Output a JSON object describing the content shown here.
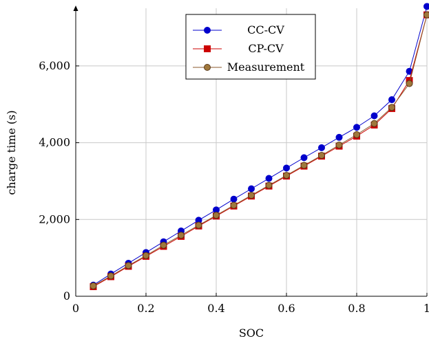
{
  "chart_data": {
    "type": "line",
    "title": "",
    "xlabel": "SOC",
    "ylabel": "charge time (s)",
    "xlim": [
      0,
      1
    ],
    "ylim": [
      0,
      7600
    ],
    "x_ticks": [
      {
        "value": 0,
        "label": "0"
      },
      {
        "value": 0.2,
        "label": "0.2"
      },
      {
        "value": 0.4,
        "label": "0.4"
      },
      {
        "value": 0.6,
        "label": "0.6"
      },
      {
        "value": 0.8,
        "label": "0.8"
      },
      {
        "value": 1,
        "label": "1"
      }
    ],
    "y_ticks": [
      {
        "value": 0,
        "label": "0"
      },
      {
        "value": 2000,
        "label": "2,000"
      },
      {
        "value": 4000,
        "label": "4,000"
      },
      {
        "value": 6000,
        "label": "6,000"
      }
    ],
    "grid": true,
    "legend": "top-center",
    "x": [
      0.05,
      0.1,
      0.15,
      0.2,
      0.25,
      0.3,
      0.35,
      0.4,
      0.45,
      0.5,
      0.55,
      0.6,
      0.65,
      0.7,
      0.75,
      0.8,
      0.85,
      0.9,
      0.95,
      1.0
    ],
    "series": [
      {
        "name": "CC-CV",
        "color": "#0000cc",
        "marker": "circle",
        "values": [
          290,
          580,
          860,
          1140,
          1420,
          1700,
          1980,
          2250,
          2530,
          2800,
          3070,
          3340,
          3610,
          3870,
          4140,
          4400,
          4700,
          5120,
          5860,
          7550
        ]
      },
      {
        "name": "CP-CV",
        "color": "#cc0000",
        "marker": "square",
        "values": [
          250,
          510,
          780,
          1040,
          1300,
          1560,
          1830,
          2090,
          2350,
          2610,
          2870,
          3130,
          3390,
          3650,
          3910,
          4170,
          4460,
          4890,
          5620,
          7330
        ]
      },
      {
        "name": "Measurement",
        "color": "#8b5a2b",
        "marker": "circle",
        "values": [
          270,
          530,
          800,
          1060,
          1330,
          1590,
          1850,
          2110,
          2370,
          2630,
          2890,
          3150,
          3410,
          3670,
          3940,
          4210,
          4500,
          4920,
          5540,
          7330
        ]
      }
    ]
  }
}
